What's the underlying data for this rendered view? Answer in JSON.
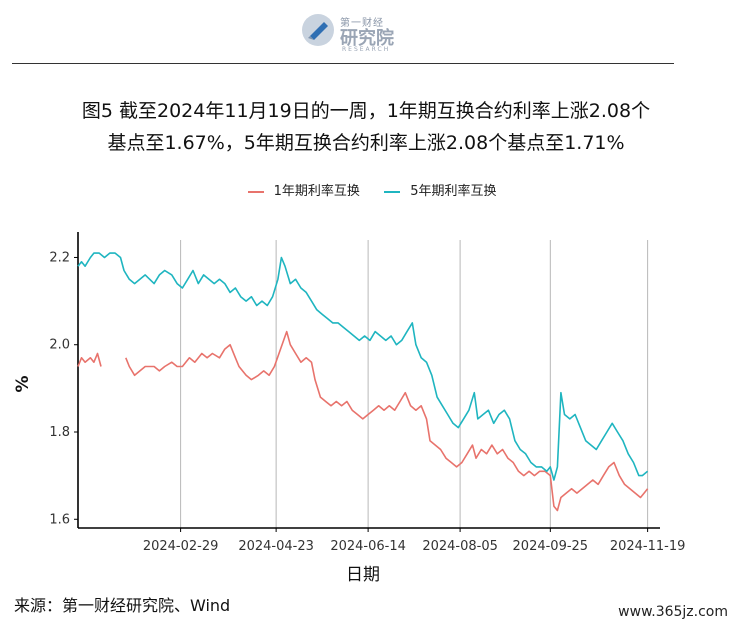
{
  "logo": {
    "small": "第一财经",
    "big": "研究院",
    "sub": "RESEARCH",
    "icon": "logo-mark-icon"
  },
  "title_line1": "图5  截至2024年11月19日的一周，1年期互换合约利率上涨2.08个",
  "title_line2": "基点至1.67%，5年期互换合约利率上涨2.08个基点至1.71%",
  "source": "来源：第一财经研究院、Wind",
  "watermark": "www.365jz.com",
  "colors": {
    "series1": "#e8736c",
    "series2": "#1fb5c0",
    "grid": "#b8b8b8",
    "axis": "#000000"
  },
  "chart_data": {
    "type": "line",
    "title": "",
    "xlabel": "日期",
    "ylabel": "%",
    "ylim": [
      1.58,
      2.24
    ],
    "yticks": [
      1.6,
      1.8,
      2.0,
      2.2
    ],
    "xlim": [
      "2024-01-02",
      "2024-11-26"
    ],
    "xticks": [
      "2024-02-29",
      "2024-04-23",
      "2024-06-14",
      "2024-08-05",
      "2024-09-25",
      "2024-11-19"
    ],
    "grid": "vertical",
    "legend": "top",
    "series": [
      {
        "name": "1年期利率互换",
        "points": [
          [
            "2024-01-02",
            1.95
          ],
          [
            "2024-01-04",
            1.97
          ],
          [
            "2024-01-06",
            1.96
          ],
          [
            "2024-01-09",
            1.97
          ],
          [
            "2024-01-11",
            1.96
          ],
          [
            "2024-01-13",
            1.98
          ],
          [
            "2024-01-15",
            1.95
          ],
          [
            "2024-01-29",
            1.97
          ],
          [
            "2024-01-31",
            1.95
          ],
          [
            "2024-02-03",
            1.93
          ],
          [
            "2024-02-06",
            1.94
          ],
          [
            "2024-02-09",
            1.95
          ],
          [
            "2024-02-14",
            1.95
          ],
          [
            "2024-02-17",
            1.94
          ],
          [
            "2024-02-20",
            1.95
          ],
          [
            "2024-02-24",
            1.96
          ],
          [
            "2024-02-27",
            1.95
          ],
          [
            "2024-03-01",
            1.95
          ],
          [
            "2024-03-05",
            1.97
          ],
          [
            "2024-03-08",
            1.96
          ],
          [
            "2024-03-12",
            1.98
          ],
          [
            "2024-03-15",
            1.97
          ],
          [
            "2024-03-18",
            1.98
          ],
          [
            "2024-03-22",
            1.97
          ],
          [
            "2024-03-25",
            1.99
          ],
          [
            "2024-03-28",
            2.0
          ],
          [
            "2024-03-31",
            1.97
          ],
          [
            "2024-04-02",
            1.95
          ],
          [
            "2024-04-06",
            1.93
          ],
          [
            "2024-04-09",
            1.92
          ],
          [
            "2024-04-13",
            1.93
          ],
          [
            "2024-04-16",
            1.94
          ],
          [
            "2024-04-19",
            1.93
          ],
          [
            "2024-04-22",
            1.95
          ],
          [
            "2024-04-29",
            2.03
          ],
          [
            "2024-05-01",
            2.0
          ],
          [
            "2024-05-04",
            1.98
          ],
          [
            "2024-05-07",
            1.96
          ],
          [
            "2024-05-10",
            1.97
          ],
          [
            "2024-05-13",
            1.96
          ],
          [
            "2024-05-15",
            1.92
          ],
          [
            "2024-05-18",
            1.88
          ],
          [
            "2024-05-21",
            1.87
          ],
          [
            "2024-05-24",
            1.86
          ],
          [
            "2024-05-27",
            1.87
          ],
          [
            "2024-05-30",
            1.86
          ],
          [
            "2024-06-02",
            1.87
          ],
          [
            "2024-06-05",
            1.85
          ],
          [
            "2024-06-08",
            1.84
          ],
          [
            "2024-06-11",
            1.83
          ],
          [
            "2024-06-14",
            1.84
          ],
          [
            "2024-06-17",
            1.85
          ],
          [
            "2024-06-20",
            1.86
          ],
          [
            "2024-06-23",
            1.85
          ],
          [
            "2024-06-26",
            1.86
          ],
          [
            "2024-06-29",
            1.85
          ],
          [
            "2024-07-02",
            1.87
          ],
          [
            "2024-07-05",
            1.89
          ],
          [
            "2024-07-08",
            1.86
          ],
          [
            "2024-07-11",
            1.85
          ],
          [
            "2024-07-14",
            1.86
          ],
          [
            "2024-07-17",
            1.83
          ],
          [
            "2024-07-19",
            1.78
          ],
          [
            "2024-07-22",
            1.77
          ],
          [
            "2024-07-25",
            1.76
          ],
          [
            "2024-07-28",
            1.74
          ],
          [
            "2024-07-31",
            1.73
          ],
          [
            "2024-08-03",
            1.72
          ],
          [
            "2024-08-06",
            1.73
          ],
          [
            "2024-08-09",
            1.75
          ],
          [
            "2024-08-12",
            1.77
          ],
          [
            "2024-08-14",
            1.74
          ],
          [
            "2024-08-17",
            1.76
          ],
          [
            "2024-08-20",
            1.75
          ],
          [
            "2024-08-23",
            1.77
          ],
          [
            "2024-08-26",
            1.75
          ],
          [
            "2024-08-29",
            1.76
          ],
          [
            "2024-09-01",
            1.74
          ],
          [
            "2024-09-04",
            1.73
          ],
          [
            "2024-09-07",
            1.71
          ],
          [
            "2024-09-10",
            1.7
          ],
          [
            "2024-09-13",
            1.71
          ],
          [
            "2024-09-16",
            1.7
          ],
          [
            "2024-09-19",
            1.71
          ],
          [
            "2024-09-22",
            1.71
          ],
          [
            "2024-09-25",
            1.7
          ],
          [
            "2024-09-27",
            1.63
          ],
          [
            "2024-09-29",
            1.62
          ],
          [
            "2024-10-01",
            1.65
          ],
          [
            "2024-10-04",
            1.66
          ],
          [
            "2024-10-07",
            1.67
          ],
          [
            "2024-10-10",
            1.66
          ],
          [
            "2024-10-13",
            1.67
          ],
          [
            "2024-10-16",
            1.68
          ],
          [
            "2024-10-19",
            1.69
          ],
          [
            "2024-10-22",
            1.68
          ],
          [
            "2024-10-25",
            1.7
          ],
          [
            "2024-10-28",
            1.72
          ],
          [
            "2024-10-31",
            1.73
          ],
          [
            "2024-11-03",
            1.7
          ],
          [
            "2024-11-06",
            1.68
          ],
          [
            "2024-11-09",
            1.67
          ],
          [
            "2024-11-12",
            1.66
          ],
          [
            "2024-11-15",
            1.65
          ],
          [
            "2024-11-17",
            1.66
          ],
          [
            "2024-11-19",
            1.67
          ]
        ]
      },
      {
        "name": "5年期利率互换",
        "points": [
          [
            "2024-01-02",
            2.18
          ],
          [
            "2024-01-04",
            2.19
          ],
          [
            "2024-01-06",
            2.18
          ],
          [
            "2024-01-09",
            2.2
          ],
          [
            "2024-01-11",
            2.21
          ],
          [
            "2024-01-14",
            2.21
          ],
          [
            "2024-01-17",
            2.2
          ],
          [
            "2024-01-20",
            2.21
          ],
          [
            "2024-01-23",
            2.21
          ],
          [
            "2024-01-26",
            2.2
          ],
          [
            "2024-01-28",
            2.17
          ],
          [
            "2024-01-31",
            2.15
          ],
          [
            "2024-02-03",
            2.14
          ],
          [
            "2024-02-06",
            2.15
          ],
          [
            "2024-02-09",
            2.16
          ],
          [
            "2024-02-14",
            2.14
          ],
          [
            "2024-02-17",
            2.16
          ],
          [
            "2024-02-20",
            2.17
          ],
          [
            "2024-02-24",
            2.16
          ],
          [
            "2024-02-27",
            2.14
          ],
          [
            "2024-03-01",
            2.13
          ],
          [
            "2024-03-04",
            2.15
          ],
          [
            "2024-03-07",
            2.17
          ],
          [
            "2024-03-10",
            2.14
          ],
          [
            "2024-03-13",
            2.16
          ],
          [
            "2024-03-16",
            2.15
          ],
          [
            "2024-03-19",
            2.14
          ],
          [
            "2024-03-22",
            2.15
          ],
          [
            "2024-03-25",
            2.14
          ],
          [
            "2024-03-28",
            2.12
          ],
          [
            "2024-03-31",
            2.13
          ],
          [
            "2024-04-03",
            2.11
          ],
          [
            "2024-04-06",
            2.1
          ],
          [
            "2024-04-09",
            2.11
          ],
          [
            "2024-04-12",
            2.09
          ],
          [
            "2024-04-15",
            2.1
          ],
          [
            "2024-04-18",
            2.09
          ],
          [
            "2024-04-21",
            2.11
          ],
          [
            "2024-04-24",
            2.15
          ],
          [
            "2024-04-26",
            2.2
          ],
          [
            "2024-04-28",
            2.18
          ],
          [
            "2024-05-01",
            2.14
          ],
          [
            "2024-05-04",
            2.15
          ],
          [
            "2024-05-07",
            2.13
          ],
          [
            "2024-05-10",
            2.12
          ],
          [
            "2024-05-13",
            2.1
          ],
          [
            "2024-05-16",
            2.08
          ],
          [
            "2024-05-19",
            2.07
          ],
          [
            "2024-05-22",
            2.06
          ],
          [
            "2024-05-25",
            2.05
          ],
          [
            "2024-05-28",
            2.05
          ],
          [
            "2024-05-31",
            2.04
          ],
          [
            "2024-06-03",
            2.03
          ],
          [
            "2024-06-06",
            2.02
          ],
          [
            "2024-06-09",
            2.01
          ],
          [
            "2024-06-12",
            2.02
          ],
          [
            "2024-06-15",
            2.01
          ],
          [
            "2024-06-18",
            2.03
          ],
          [
            "2024-06-21",
            2.02
          ],
          [
            "2024-06-24",
            2.01
          ],
          [
            "2024-06-27",
            2.02
          ],
          [
            "2024-06-30",
            2.0
          ],
          [
            "2024-07-03",
            2.01
          ],
          [
            "2024-07-06",
            2.03
          ],
          [
            "2024-07-09",
            2.05
          ],
          [
            "2024-07-11",
            2.0
          ],
          [
            "2024-07-14",
            1.97
          ],
          [
            "2024-07-17",
            1.96
          ],
          [
            "2024-07-20",
            1.93
          ],
          [
            "2024-07-23",
            1.88
          ],
          [
            "2024-07-26",
            1.86
          ],
          [
            "2024-07-29",
            1.84
          ],
          [
            "2024-08-01",
            1.82
          ],
          [
            "2024-08-04",
            1.81
          ],
          [
            "2024-08-07",
            1.83
          ],
          [
            "2024-08-10",
            1.85
          ],
          [
            "2024-08-13",
            1.89
          ],
          [
            "2024-08-15",
            1.83
          ],
          [
            "2024-08-18",
            1.84
          ],
          [
            "2024-08-21",
            1.85
          ],
          [
            "2024-08-24",
            1.82
          ],
          [
            "2024-08-27",
            1.84
          ],
          [
            "2024-08-30",
            1.85
          ],
          [
            "2024-09-02",
            1.83
          ],
          [
            "2024-09-05",
            1.78
          ],
          [
            "2024-09-08",
            1.76
          ],
          [
            "2024-09-11",
            1.75
          ],
          [
            "2024-09-14",
            1.73
          ],
          [
            "2024-09-17",
            1.72
          ],
          [
            "2024-09-20",
            1.72
          ],
          [
            "2024-09-23",
            1.71
          ],
          [
            "2024-09-25",
            1.72
          ],
          [
            "2024-09-27",
            1.69
          ],
          [
            "2024-09-29",
            1.72
          ],
          [
            "2024-10-01",
            1.89
          ],
          [
            "2024-10-03",
            1.84
          ],
          [
            "2024-10-06",
            1.83
          ],
          [
            "2024-10-09",
            1.84
          ],
          [
            "2024-10-12",
            1.81
          ],
          [
            "2024-10-15",
            1.78
          ],
          [
            "2024-10-18",
            1.77
          ],
          [
            "2024-10-21",
            1.76
          ],
          [
            "2024-10-24",
            1.78
          ],
          [
            "2024-10-27",
            1.8
          ],
          [
            "2024-10-30",
            1.82
          ],
          [
            "2024-11-02",
            1.8
          ],
          [
            "2024-11-05",
            1.78
          ],
          [
            "2024-11-08",
            1.75
          ],
          [
            "2024-11-11",
            1.73
          ],
          [
            "2024-11-14",
            1.7
          ],
          [
            "2024-11-16",
            1.7
          ],
          [
            "2024-11-19",
            1.71
          ]
        ]
      }
    ]
  }
}
